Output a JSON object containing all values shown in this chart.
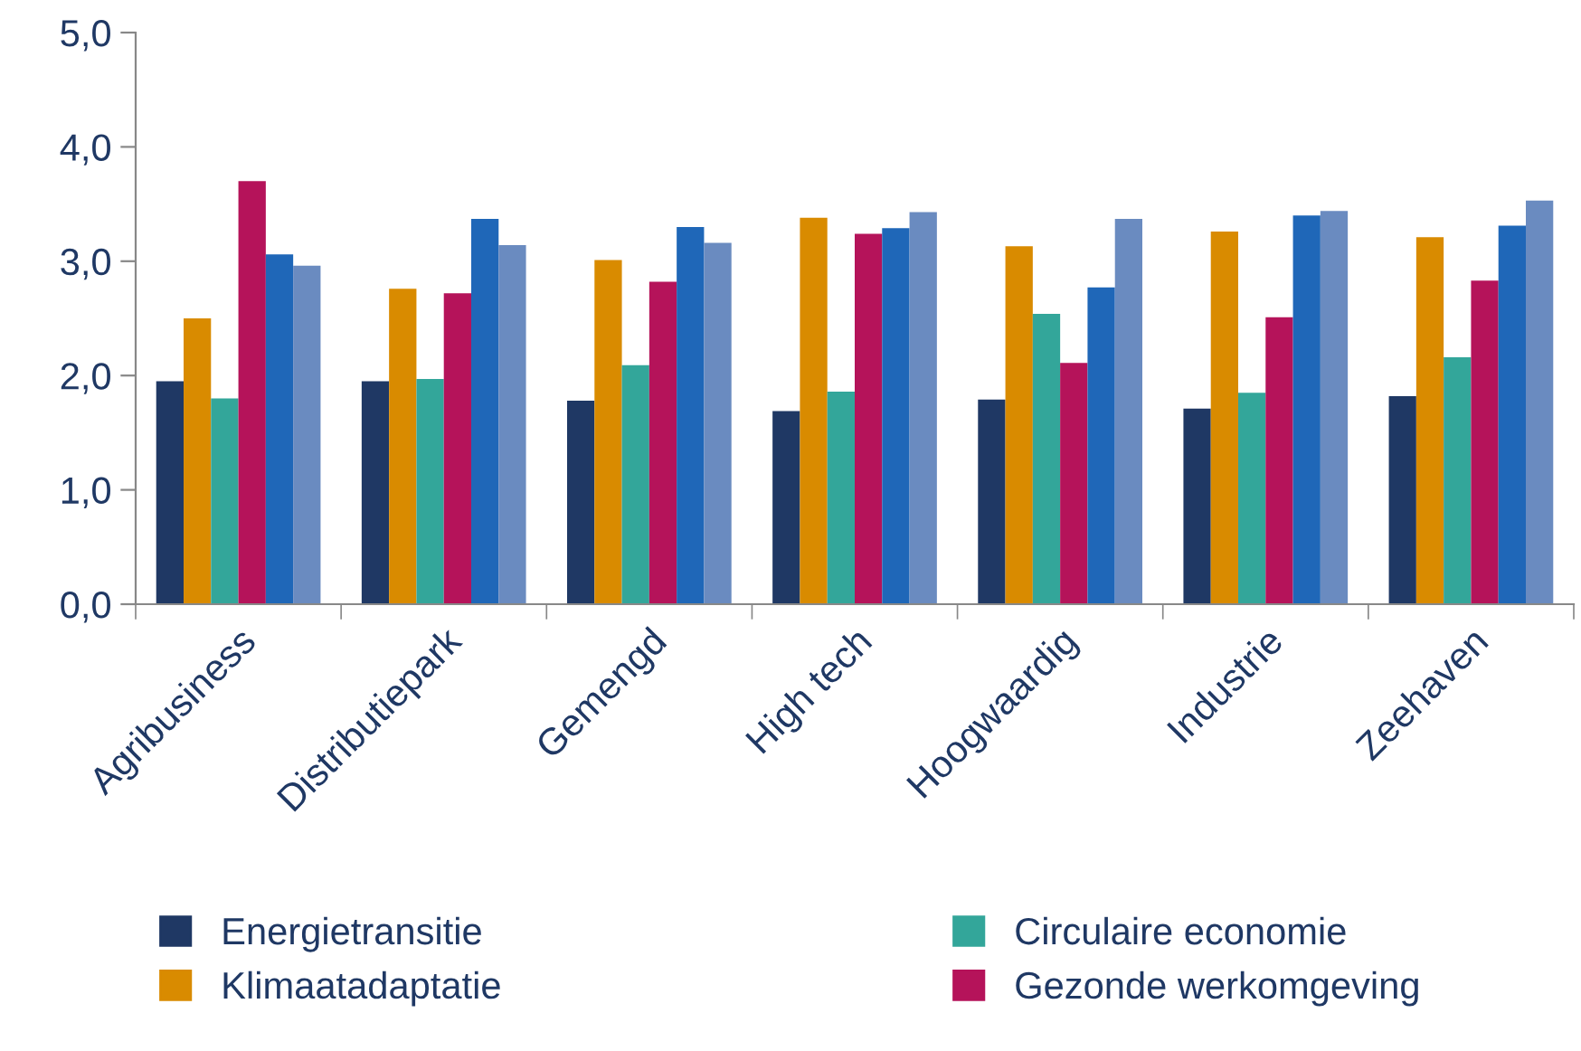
{
  "chart_data": {
    "type": "bar",
    "categories": [
      "Agribusiness",
      "Distributiepark",
      "Gemengd",
      "High tech",
      "Hoogwaardig",
      "Industrie",
      "Zeehaven"
    ],
    "series": [
      {
        "name": "Energietransitie",
        "color": "#1f3864",
        "values": [
          1.95,
          1.95,
          1.78,
          1.69,
          1.79,
          1.71,
          1.82
        ]
      },
      {
        "name": "Klimaatadaptatie",
        "color": "#d98b00",
        "values": [
          2.5,
          2.76,
          3.01,
          3.38,
          3.13,
          3.26,
          3.21
        ]
      },
      {
        "name": "Circulaire economie",
        "color": "#33a69a",
        "values": [
          1.8,
          1.97,
          2.09,
          1.86,
          2.54,
          1.85,
          2.16
        ]
      },
      {
        "name": "Gezonde werkomgeving",
        "color": "#b5135a",
        "values": [
          3.7,
          2.72,
          2.82,
          3.24,
          2.11,
          2.51,
          2.83
        ]
      },
      {
        "color": "#1f67b8",
        "values": [
          3.06,
          3.37,
          3.3,
          3.29,
          2.77,
          3.4,
          3.31
        ]
      },
      {
        "color": "#6a8bc0",
        "values": [
          2.96,
          3.14,
          3.16,
          3.43,
          3.37,
          3.44,
          3.53
        ]
      }
    ],
    "ylim": [
      0,
      5
    ],
    "yticks": [
      {
        "value": 0,
        "label": "0,0"
      },
      {
        "value": 1,
        "label": "1,0"
      },
      {
        "value": 2,
        "label": "2,0"
      },
      {
        "value": 3,
        "label": "3,0"
      },
      {
        "value": 4,
        "label": "4,0"
      },
      {
        "value": 5,
        "label": "5,0"
      }
    ],
    "grid": false,
    "legend": "bottom"
  }
}
